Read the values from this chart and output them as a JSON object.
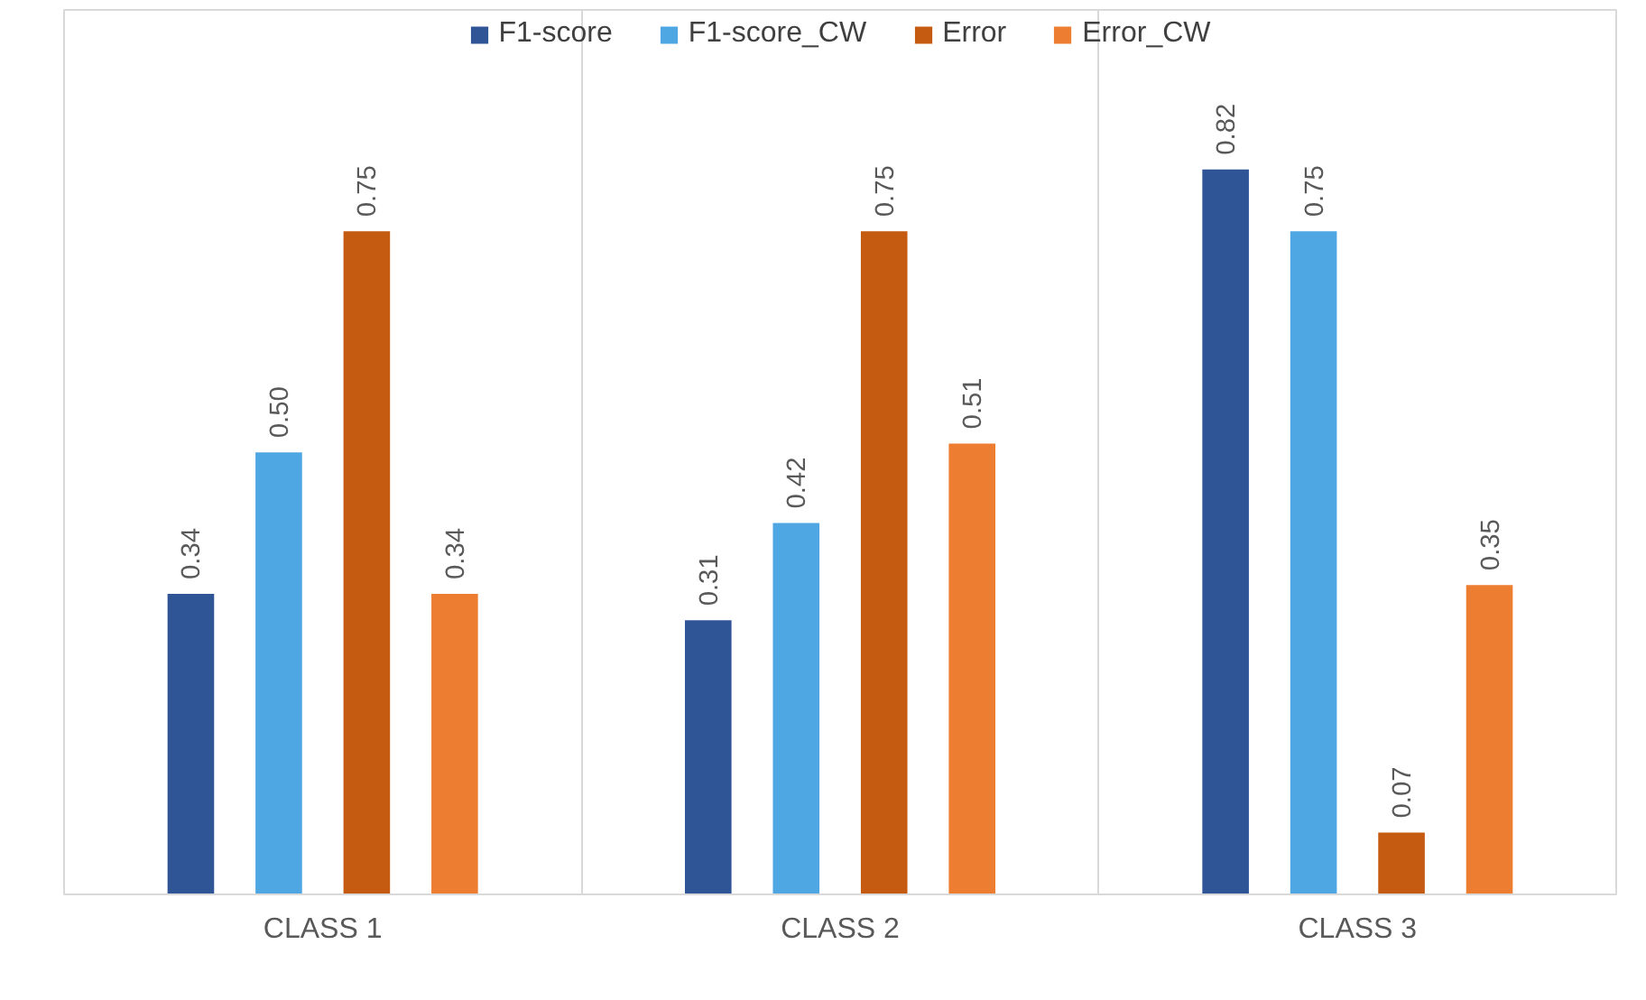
{
  "chart_data": {
    "type": "bar",
    "categories": [
      "CLASS 1",
      "CLASS 2",
      "CLASS 3"
    ],
    "series": [
      {
        "name": "F1-score",
        "color": "#2f5597",
        "values": [
          0.34,
          0.31,
          0.82
        ],
        "value_labels": [
          "0.34",
          "0.31",
          "0.82"
        ]
      },
      {
        "name": "F1-score_CW",
        "color": "#4ea6e3",
        "values": [
          0.5,
          0.42,
          0.75
        ],
        "value_labels": [
          "0.50",
          "0.42",
          "0.75"
        ]
      },
      {
        "name": "Error",
        "color": "#c55a11",
        "values": [
          0.75,
          0.75,
          0.07
        ],
        "value_labels": [
          "0.75",
          "0.75",
          "0.07"
        ]
      },
      {
        "name": "Error_CW",
        "color": "#ed7d31",
        "values": [
          0.34,
          0.51,
          0.35
        ],
        "value_labels": [
          "0.34",
          "0.51",
          "0.35"
        ]
      }
    ],
    "grid": "x",
    "legend": "top"
  }
}
